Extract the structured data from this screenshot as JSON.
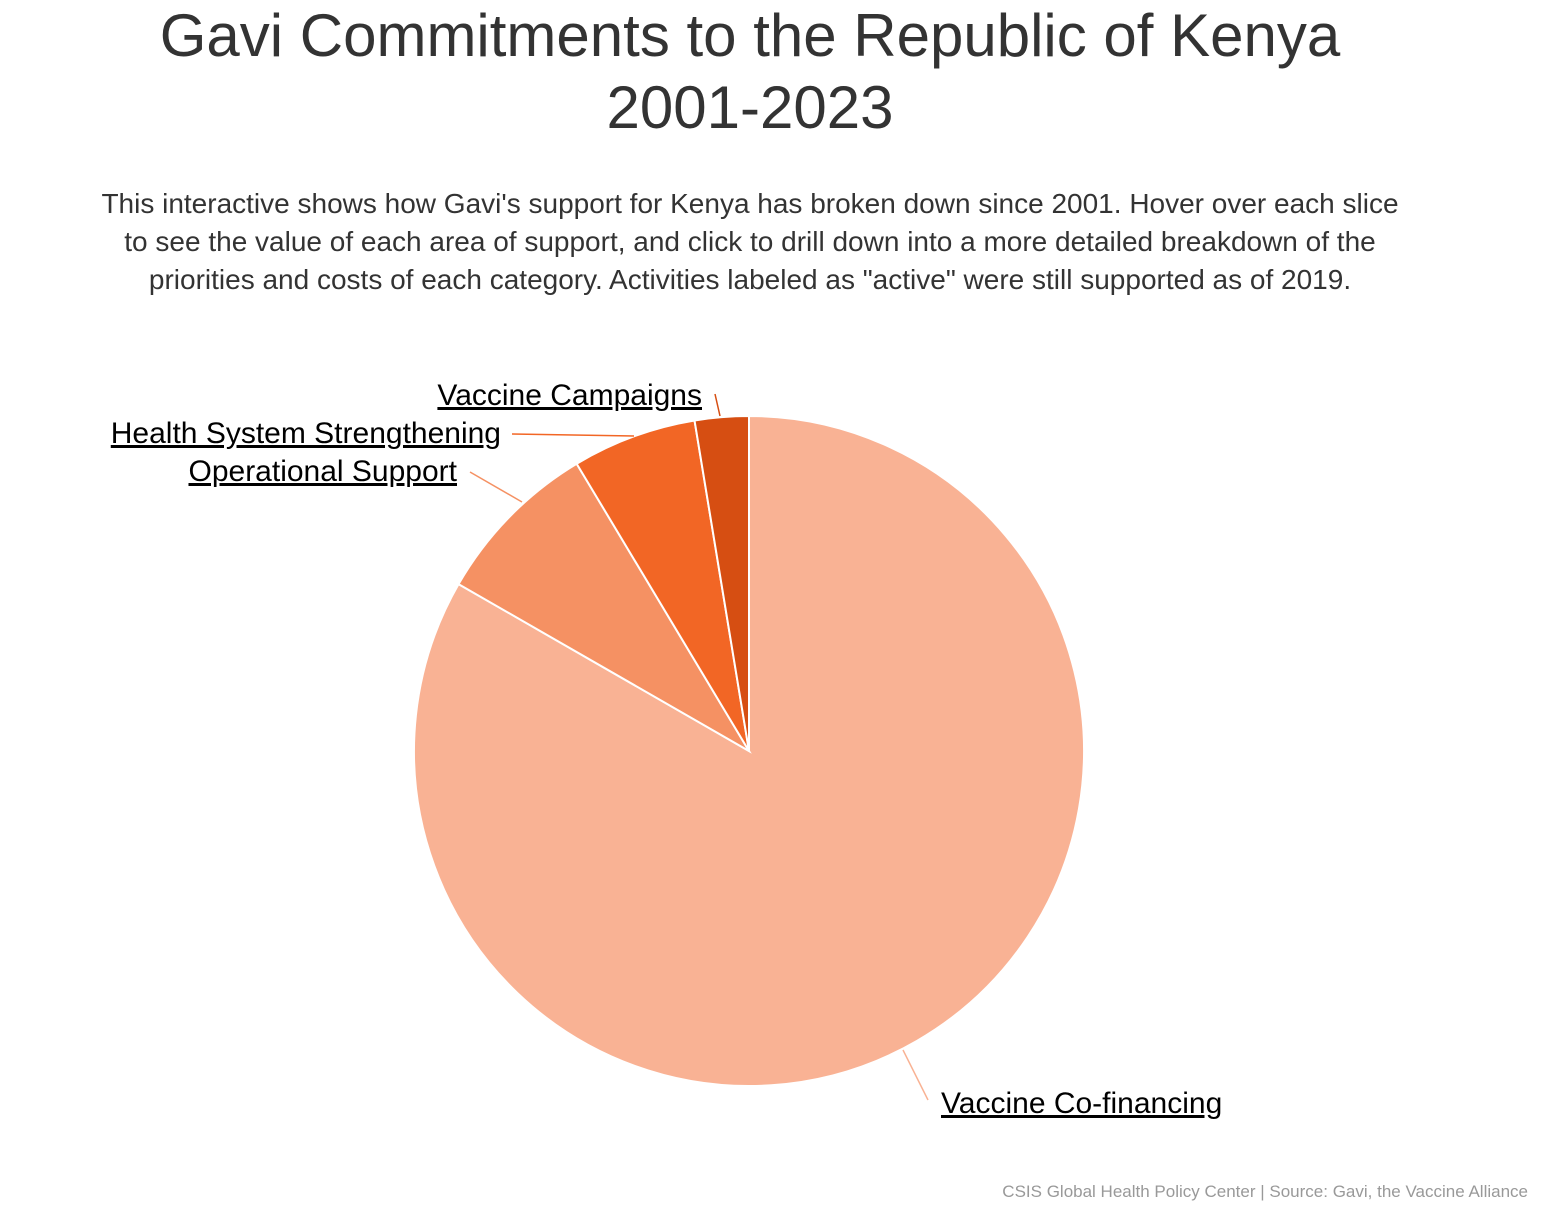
{
  "chart_data": {
    "type": "pie",
    "title_lines": [
      "Gavi Commitments to the Republic of Kenya",
      "2001-2023"
    ],
    "subtitle_lines": [
      "This interactive shows how Gavi's support for Kenya has broken down since 2001. Hover over each slice",
      "to see the value of each area of support, and click to drill down into a more detailed breakdown of the",
      "priorities and costs of each category. Activities labeled as \"active\" were still supported as of 2019."
    ],
    "categories": [
      "Vaccine Co-financing",
      "Operational Support",
      "Health System Strengthening",
      "Vaccine Campaigns"
    ],
    "values": [
      83.3,
      8.1,
      6.0,
      2.6
    ],
    "colors": [
      "#f9b294",
      "#f59163",
      "#f26625",
      "#d64e12"
    ],
    "credit": "CSIS Global Health Policy Center | Source: Gavi, the Vaccine Alliance"
  }
}
